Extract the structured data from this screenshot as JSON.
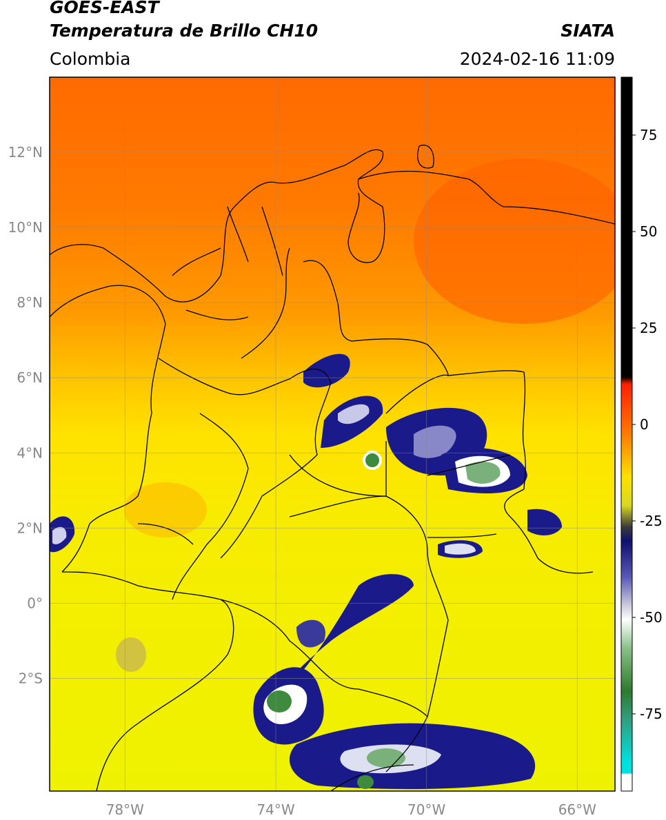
{
  "header": {
    "line1": "GOES-EAST",
    "line2": "Temperatura de Brillo CH10",
    "brand": "SIATA",
    "region": "Colombia",
    "timestamp": "2024-02-16 11:09"
  },
  "map": {
    "lon_range": [
      -80,
      -65
    ],
    "lat_range": [
      -5,
      14
    ],
    "lon_ticks": [
      {
        "value": -78,
        "label": "78°W"
      },
      {
        "value": -74,
        "label": "74°W"
      },
      {
        "value": -70,
        "label": "70°W"
      },
      {
        "value": -66,
        "label": "66°W"
      }
    ],
    "lat_ticks": [
      {
        "value": 12,
        "label": "12°N"
      },
      {
        "value": 10,
        "label": "10°N"
      },
      {
        "value": 8,
        "label": "8°N"
      },
      {
        "value": 6,
        "label": "6°N"
      },
      {
        "value": 4,
        "label": "4°N"
      },
      {
        "value": 2,
        "label": "2°N"
      },
      {
        "value": 0,
        "label": "0°"
      },
      {
        "value": -2,
        "label": "2°S"
      }
    ],
    "gridlines": true,
    "background_color": "#f7e41c",
    "warm_color": "#ff6600",
    "storm_color": "#1a1a8a",
    "cold_core_color": "#3e9a3e"
  },
  "colorbar": {
    "range": [
      -95,
      90
    ],
    "ticks": [
      {
        "value": 75,
        "label": "75"
      },
      {
        "value": 50,
        "label": "50"
      },
      {
        "value": 25,
        "label": "25"
      },
      {
        "value": 0,
        "label": "0"
      },
      {
        "value": -25,
        "label": "-25"
      },
      {
        "value": -50,
        "label": "-50"
      },
      {
        "value": -75,
        "label": "-75"
      }
    ]
  }
}
